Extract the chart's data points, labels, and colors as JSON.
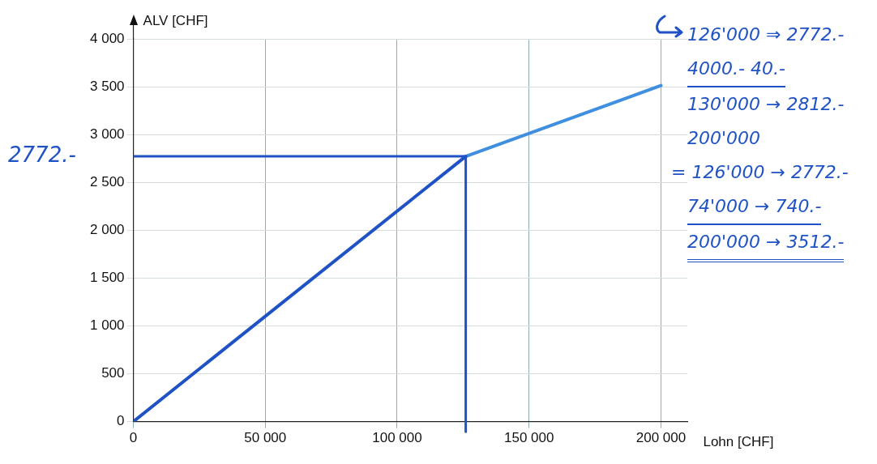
{
  "chart_data": {
    "type": "line",
    "xlabel": "Lohn [CHF]",
    "ylabel": "ALV [CHF]",
    "xlim": [
      0,
      210000
    ],
    "ylim": [
      0,
      4000
    ],
    "xticks": [
      {
        "value": 0,
        "label": "0"
      },
      {
        "value": 50000,
        "label": "50 000"
      },
      {
        "value": 100000,
        "label": "100 000"
      },
      {
        "value": 150000,
        "label": "150 000"
      },
      {
        "value": 200000,
        "label": "200 000"
      }
    ],
    "yticks": [
      {
        "value": 0,
        "label": "0"
      },
      {
        "value": 500,
        "label": "500"
      },
      {
        "value": 1000,
        "label": "1 000"
      },
      {
        "value": 1500,
        "label": "1 500"
      },
      {
        "value": 2000,
        "label": "2 000"
      },
      {
        "value": 2500,
        "label": "2 500"
      },
      {
        "value": 3000,
        "label": "3 000"
      },
      {
        "value": 3500,
        "label": "3 500"
      },
      {
        "value": 4000,
        "label": "4 000"
      }
    ],
    "series": [
      {
        "color": "#1f52c4",
        "x": [
          0,
          126000
        ],
        "values": [
          0,
          2772
        ]
      },
      {
        "color": "#3f8fe0",
        "x": [
          126000,
          200000
        ],
        "values": [
          2772,
          3512
        ]
      }
    ],
    "ref_lines": [
      {
        "axis": "y",
        "value": 2772,
        "label": "2772.-",
        "color": "#1f52c4"
      },
      {
        "axis": "x",
        "value": 126000,
        "label": null,
        "color": "#1f52c4"
      }
    ],
    "annotations": [
      "126'000 ⇒ 2772.-",
      "4000.- 40.-",
      "130'000 → 2812.-",
      "200'000",
      "= 126'000 → 2772.-",
      "74'000 → 740.-",
      "200'000 → 3512.-"
    ],
    "grid": true,
    "marker": "none",
    "line_style": "solid",
    "legend": false
  }
}
